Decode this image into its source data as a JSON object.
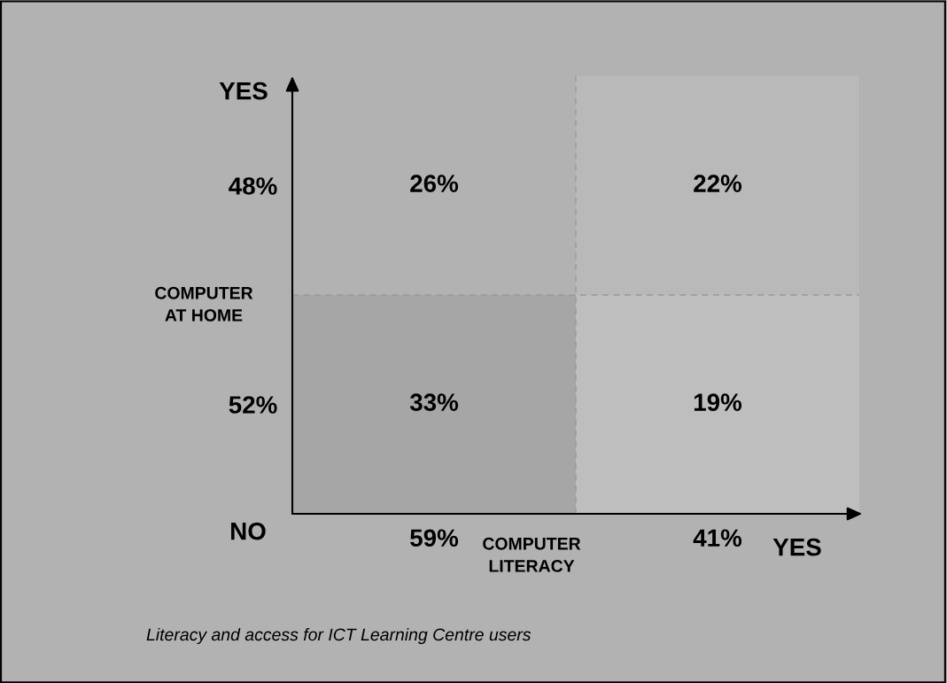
{
  "chart_data": {
    "type": "heatmap",
    "xlabel": "COMPUTER\nLITERACY",
    "ylabel": "COMPUTER\nAT HOME",
    "categories": [
      "59%",
      "41%"
    ],
    "y_categories": [
      "48%",
      "52%"
    ],
    "cells": [
      [
        26,
        22
      ],
      [
        33,
        19
      ]
    ],
    "cell_labels": [
      [
        "26%",
        "22%"
      ],
      [
        "33%",
        "19%"
      ]
    ],
    "annotations": [
      "YES",
      "NO",
      "YES",
      "Literacy and access for ICT Learning Centre users"
    ]
  }
}
